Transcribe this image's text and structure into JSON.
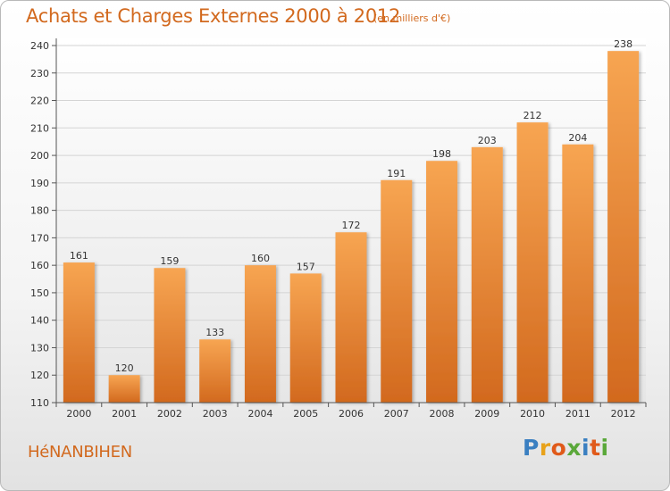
{
  "header": {
    "title": "Achats et Charges Externes 2000 à 2012",
    "subtitle": "(en milliers d'€)"
  },
  "footer": {
    "commune": "HéNANBIHEN",
    "logo": {
      "text": "Proxiti",
      "letters": [
        {
          "char": "P",
          "color": "#3a7fc1"
        },
        {
          "char": "r",
          "color": "#e8a21a"
        },
        {
          "char": "o",
          "color": "#e05a1a"
        },
        {
          "char": "x",
          "color": "#5aa83a"
        },
        {
          "char": "i",
          "color": "#3a7fc1"
        },
        {
          "char": "t",
          "color": "#e05a1a"
        },
        {
          "char": "i",
          "color": "#5aa83a"
        }
      ]
    }
  },
  "colors": {
    "accent": "#d2691e",
    "bar_top": "#f7a552",
    "bar_bottom": "#d2691e"
  },
  "chart_data": {
    "type": "bar",
    "title": "Achats et Charges Externes 2000 à 2012",
    "subtitle": "(en milliers d'€)",
    "xlabel": "",
    "ylabel": "",
    "categories": [
      "2000",
      "2001",
      "2002",
      "2003",
      "2004",
      "2005",
      "2006",
      "2007",
      "2008",
      "2009",
      "2010",
      "2011",
      "2012"
    ],
    "values": [
      161,
      120,
      159,
      133,
      160,
      157,
      172,
      191,
      198,
      203,
      212,
      204,
      238
    ],
    "ylim": [
      110,
      240
    ],
    "yticks": [
      110,
      120,
      130,
      140,
      150,
      160,
      170,
      180,
      190,
      200,
      210,
      220,
      230,
      240
    ],
    "grid": true,
    "legend": "none"
  }
}
